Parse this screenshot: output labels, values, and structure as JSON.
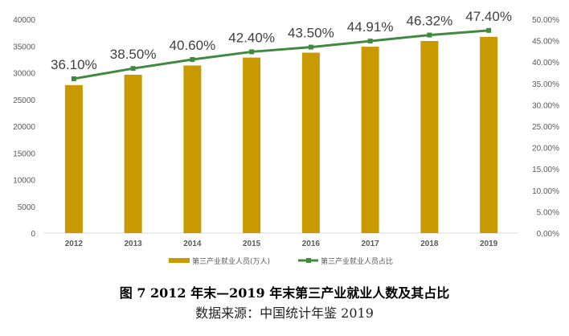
{
  "chart_data": {
    "type": "bar",
    "categories": [
      "2012",
      "2013",
      "2014",
      "2015",
      "2016",
      "2017",
      "2018",
      "2019"
    ],
    "series": [
      {
        "name": "第三产业就业人员(万人)",
        "type": "bar",
        "axis": "left",
        "color": "#c99a00",
        "values": [
          27690,
          29636,
          31364,
          32839,
          33757,
          34872,
          35938,
          36721
        ]
      },
      {
        "name": "第三产业就业人员占比",
        "type": "line",
        "axis": "right",
        "color": "#3f8a3f",
        "values": [
          36.1,
          38.5,
          40.6,
          42.4,
          43.5,
          44.91,
          46.32,
          47.4
        ],
        "labels": [
          "36.10%",
          "38.50%",
          "40.60%",
          "42.40%",
          "43.50%",
          "44.91%",
          "46.32%",
          "47.40%"
        ]
      }
    ],
    "ylim_left": [
      0,
      40000
    ],
    "yticks_left": [
      "0",
      "5000",
      "10000",
      "15000",
      "20000",
      "25000",
      "30000",
      "35000",
      "40000"
    ],
    "ylim_right": [
      0,
      50
    ],
    "yticks_right": [
      "0.00%",
      "5.00%",
      "10.00%",
      "15.00%",
      "20.00%",
      "25.00%",
      "30.00%",
      "35.00%",
      "40.00%",
      "45.00%",
      "50.00%"
    ],
    "grid": false,
    "legend_position": "bottom"
  },
  "caption": "图 7 2012 年末—2019 年末第三产业就业人数及其占比",
  "source": "数据来源：中国统计年鉴 2019"
}
